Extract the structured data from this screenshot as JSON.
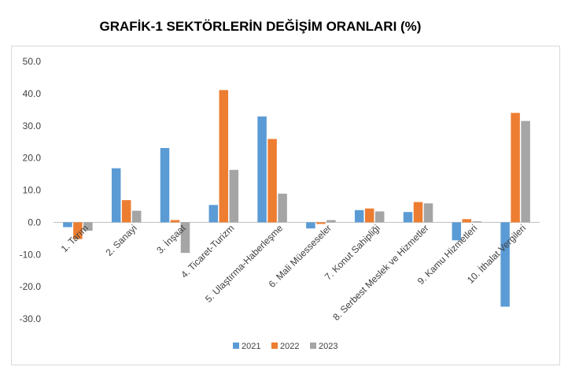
{
  "chart_data": {
    "type": "bar",
    "title": "GRAFİK-1 SEKTÖRLERİN DEĞİŞİM ORANLARI (%)",
    "xlabel": "",
    "ylabel": "",
    "ylim": [
      -30,
      50
    ],
    "yticks": [
      "50.0",
      "40.0",
      "30.0",
      "20.0",
      "10.0",
      "0.0",
      "-10.0",
      "-20.0",
      "-30.0"
    ],
    "ytick_values": [
      50,
      40,
      30,
      20,
      10,
      0,
      -10,
      -20,
      -30
    ],
    "categories": [
      "1. Tarım",
      "2. Sanayi",
      "3. İnşaat",
      "4. Ticaret-Turizm",
      "5. Ulaştırma-Haberleşme",
      "6. Mali Müesseseler",
      "7. Konut Sahipliği",
      "8. Serbest Meslek ve Hizmetler",
      "9. Kamu Hizmetleri",
      "10. İthalat Vergileri"
    ],
    "series": [
      {
        "name": "2021",
        "color": "#5b9bd5",
        "values": [
          -1.5,
          16.8,
          23.1,
          5.4,
          32.9,
          -1.9,
          3.8,
          3.2,
          -5.6,
          -26.2
        ]
      },
      {
        "name": "2022",
        "color": "#ed7d31",
        "values": [
          -5.2,
          6.9,
          0.7,
          41.1,
          25.9,
          -0.5,
          4.3,
          6.3,
          1.0,
          34.0
        ]
      },
      {
        "name": "2023",
        "color": "#a5a5a5",
        "values": [
          -2.6,
          3.6,
          -9.5,
          16.3,
          8.9,
          0.7,
          3.4,
          5.9,
          0.3,
          31.5
        ]
      }
    ],
    "grid": false,
    "legend": "bottom"
  }
}
